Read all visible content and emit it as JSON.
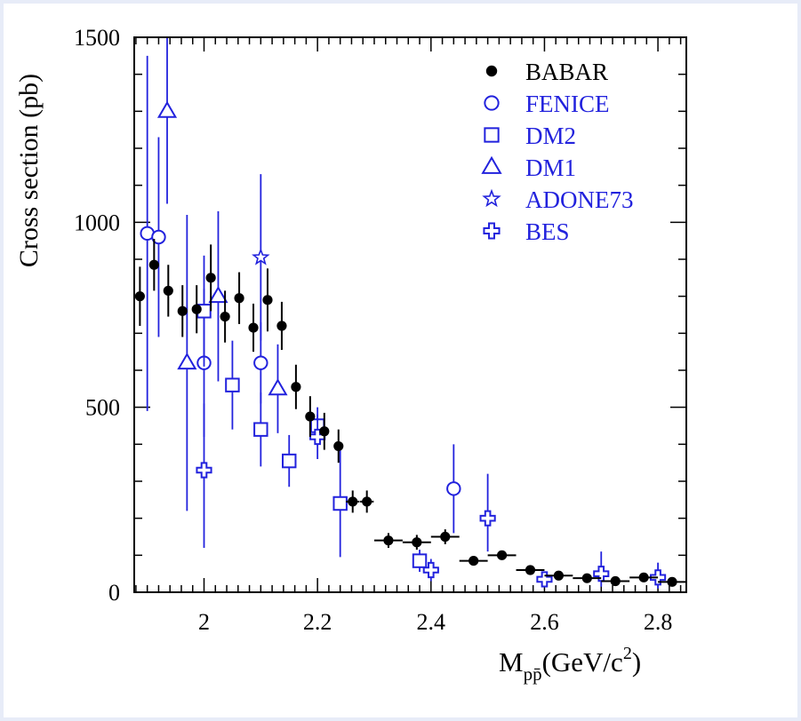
{
  "chart_data": {
    "type": "scatter",
    "title": "",
    "xlabel": "M",
    "xlabel_sub": "pp̄",
    "xlabel_unit": "(GeV/c",
    "xlabel_sup": "2",
    "xlabel_close": ")",
    "ylabel": "Cross section (pb)",
    "xlim": [
      1.877,
      2.85
    ],
    "ylim": [
      0,
      1500
    ],
    "x_ticks": [
      2,
      2.2,
      2.4,
      2.6,
      2.8
    ],
    "x_tick_labels": [
      "2",
      "2.2",
      "2.4",
      "2.6",
      "2.8"
    ],
    "y_ticks": [
      0,
      500,
      1000,
      1500
    ],
    "y_tick_labels": [
      "0",
      "500",
      "1000",
      "1500"
    ],
    "legend_position": "top-right",
    "colors": {
      "babar": "#000000",
      "others": "#2222dd"
    },
    "series": [
      {
        "name": "BABAR",
        "marker": "filled-circle",
        "color": "#000000",
        "points": [
          {
            "x": 1.887,
            "y": 800,
            "yerr": 80,
            "xerr": 0
          },
          {
            "x": 1.912,
            "y": 885,
            "yerr": 70,
            "xerr": 0
          },
          {
            "x": 1.937,
            "y": 815,
            "yerr": 70,
            "xerr": 0
          },
          {
            "x": 1.962,
            "y": 760,
            "yerr": 70,
            "xerr": 0
          },
          {
            "x": 1.987,
            "y": 765,
            "yerr": 65,
            "xerr": 0
          },
          {
            "x": 2.012,
            "y": 850,
            "yerr": 90,
            "xerr": 0
          },
          {
            "x": 2.037,
            "y": 745,
            "yerr": 70,
            "xerr": 0
          },
          {
            "x": 2.062,
            "y": 795,
            "yerr": 70,
            "xerr": 0
          },
          {
            "x": 2.087,
            "y": 715,
            "yerr": 65,
            "xerr": 0
          },
          {
            "x": 2.112,
            "y": 790,
            "yerr": 85,
            "xerr": 0
          },
          {
            "x": 2.137,
            "y": 720,
            "yerr": 65,
            "xerr": 0
          },
          {
            "x": 2.162,
            "y": 555,
            "yerr": 60,
            "xerr": 0
          },
          {
            "x": 2.187,
            "y": 475,
            "yerr": 55,
            "xerr": 0
          },
          {
            "x": 2.212,
            "y": 435,
            "yerr": 50,
            "xerr": 0
          },
          {
            "x": 2.237,
            "y": 395,
            "yerr": 45,
            "xerr": 0
          },
          {
            "x": 2.262,
            "y": 245,
            "yerr": 30,
            "xerr": 0.012
          },
          {
            "x": 2.287,
            "y": 245,
            "yerr": 30,
            "xerr": 0.012
          },
          {
            "x": 2.325,
            "y": 140,
            "yerr": 20,
            "xerr": 0.025
          },
          {
            "x": 2.375,
            "y": 135,
            "yerr": 20,
            "xerr": 0.025
          },
          {
            "x": 2.425,
            "y": 150,
            "yerr": 20,
            "xerr": 0.025
          },
          {
            "x": 2.475,
            "y": 85,
            "yerr": 12,
            "xerr": 0.025
          },
          {
            "x": 2.525,
            "y": 100,
            "yerr": 12,
            "xerr": 0.025
          },
          {
            "x": 2.575,
            "y": 60,
            "yerr": 10,
            "xerr": 0.025
          },
          {
            "x": 2.625,
            "y": 45,
            "yerr": 8,
            "xerr": 0.025
          },
          {
            "x": 2.675,
            "y": 38,
            "yerr": 8,
            "xerr": 0.025
          },
          {
            "x": 2.725,
            "y": 30,
            "yerr": 8,
            "xerr": 0.025
          },
          {
            "x": 2.775,
            "y": 40,
            "yerr": 8,
            "xerr": 0.025
          },
          {
            "x": 2.825,
            "y": 28,
            "yerr": 8,
            "xerr": 0.025
          }
        ]
      },
      {
        "name": "FENICE",
        "marker": "open-circle",
        "color": "#2222dd",
        "points": [
          {
            "x": 1.9,
            "y": 970,
            "yerr_up": 480,
            "yerr_down": 480
          },
          {
            "x": 1.92,
            "y": 960,
            "yerr_up": 270,
            "yerr_down": 270
          },
          {
            "x": 2.0,
            "y": 620,
            "yerr_up": 200,
            "yerr_down": 200
          },
          {
            "x": 2.1,
            "y": 620,
            "yerr_up": 110,
            "yerr_down": 110
          },
          {
            "x": 2.44,
            "y": 280,
            "yerr_up": 120,
            "yerr_down": 120
          }
        ]
      },
      {
        "name": "DM2",
        "marker": "open-square",
        "color": "#2222dd",
        "points": [
          {
            "x": 2.0,
            "y": 760,
            "yerr_up": 150,
            "yerr_down": 150
          },
          {
            "x": 2.05,
            "y": 560,
            "yerr_up": 120,
            "yerr_down": 120
          },
          {
            "x": 2.1,
            "y": 440,
            "yerr_up": 100,
            "yerr_down": 100
          },
          {
            "x": 2.15,
            "y": 355,
            "yerr_up": 70,
            "yerr_down": 70
          },
          {
            "x": 2.2,
            "y": 450,
            "yerr_up": 50,
            "yerr_down": 50
          },
          {
            "x": 2.24,
            "y": 240,
            "yerr_up": 145,
            "yerr_down": 145
          },
          {
            "x": 2.38,
            "y": 85,
            "yerr_up": 30,
            "yerr_down": 30
          }
        ]
      },
      {
        "name": "DM1",
        "marker": "open-triangle",
        "color": "#2222dd",
        "points": [
          {
            "x": 1.935,
            "y": 1300,
            "yerr_up": 250,
            "yerr_down": 250
          },
          {
            "x": 1.97,
            "y": 620,
            "yerr_up": 400,
            "yerr_down": 400
          },
          {
            "x": 2.025,
            "y": 800,
            "yerr_up": 230,
            "yerr_down": 230
          },
          {
            "x": 2.13,
            "y": 550,
            "yerr_up": 120,
            "yerr_down": 120
          }
        ]
      },
      {
        "name": "ADONE73",
        "marker": "open-star",
        "color": "#2222dd",
        "points": [
          {
            "x": 2.1,
            "y": 905,
            "yerr_up": 225,
            "yerr_down": 225
          }
        ]
      },
      {
        "name": "BES",
        "marker": "open-cross",
        "color": "#2222dd",
        "points": [
          {
            "x": 2.0,
            "y": 330,
            "yerr_up": 180,
            "yerr_down": 210
          },
          {
            "x": 2.2,
            "y": 420,
            "yerr_up": 60,
            "yerr_down": 60
          },
          {
            "x": 2.4,
            "y": 60,
            "yerr_up": 30,
            "yerr_down": 30
          },
          {
            "x": 2.5,
            "y": 200,
            "yerr_up": 120,
            "yerr_down": 90
          },
          {
            "x": 2.6,
            "y": 35,
            "yerr_up": 20,
            "yerr_down": 20
          },
          {
            "x": 2.7,
            "y": 50,
            "yerr_up": 60,
            "yerr_down": 35
          },
          {
            "x": 2.8,
            "y": 40,
            "yerr_up": 40,
            "yerr_down": 30
          }
        ]
      }
    ]
  }
}
